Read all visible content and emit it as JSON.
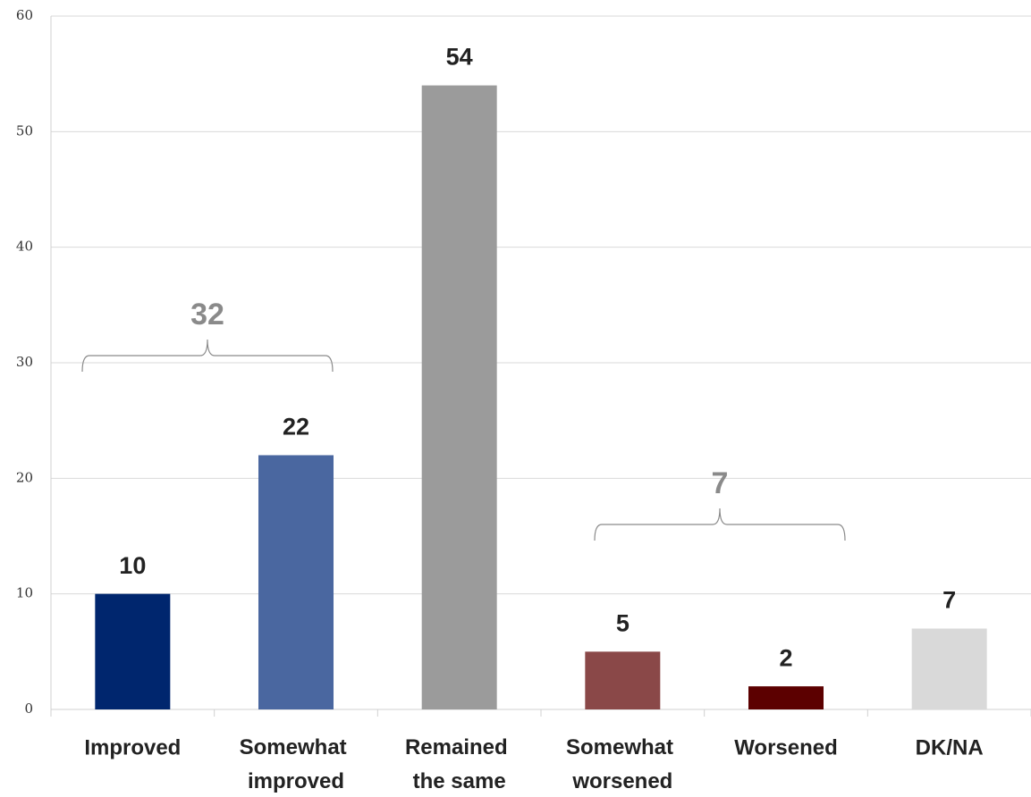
{
  "chart_data": {
    "type": "bar",
    "categories": [
      "Improved",
      "Somewhat improved",
      "Remained the same",
      "Somewhat worsened",
      "Worsened",
      "DK/NA"
    ],
    "values": [
      10,
      22,
      54,
      5,
      2,
      7
    ],
    "colors": [
      "#00266e",
      "#4a67a0",
      "#9b9b9b",
      "#8a4848",
      "#5c0000",
      "#d9d9d9"
    ],
    "ylim": [
      0,
      60
    ],
    "yticks": [
      0,
      10,
      20,
      30,
      40,
      50,
      60
    ],
    "grid": true,
    "annotations": [
      {
        "text": "32"
      },
      {
        "text": "7"
      }
    ]
  }
}
